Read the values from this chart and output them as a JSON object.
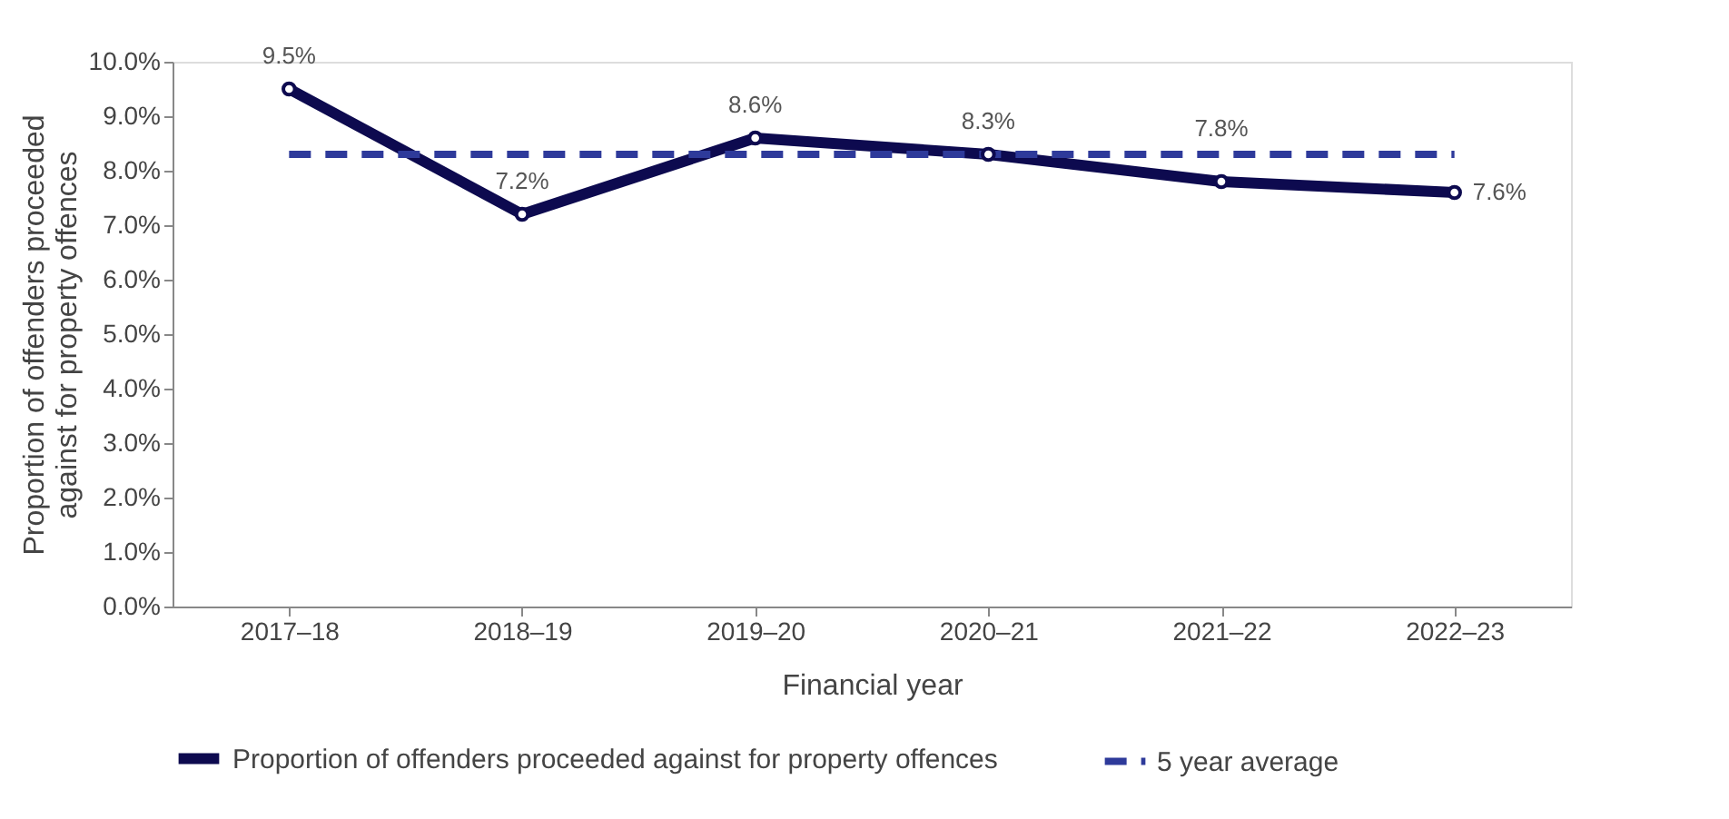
{
  "chart_data": {
    "type": "line",
    "xlabel": "Financial year",
    "ylabel": "Proportion of offenders proceeded against for property offences",
    "categories": [
      "2017–18",
      "2018–19",
      "2019–20",
      "2020–21",
      "2021–22",
      "2022–23"
    ],
    "series": [
      {
        "name": "Proportion of offenders proceeded against for property offences",
        "color": "#0d0a4f",
        "values": [
          9.5,
          7.2,
          8.6,
          8.3,
          7.8,
          7.6
        ],
        "value_labels": [
          "9.5%",
          "7.2%",
          "8.6%",
          "8.3%",
          "7.8%",
          "7.6%"
        ],
        "marker": "circle",
        "line_style": "solid"
      },
      {
        "name": "5 year average",
        "color": "#2e3a9a",
        "values": [
          8.3,
          8.3,
          8.3,
          8.3,
          8.3,
          8.3
        ],
        "marker": "none",
        "line_style": "dashed"
      }
    ],
    "ylim": [
      0,
      10
    ],
    "yticks": [
      {
        "value": 0,
        "label": "0.0%"
      },
      {
        "value": 1,
        "label": "1.0%"
      },
      {
        "value": 2,
        "label": "2.0%"
      },
      {
        "value": 3,
        "label": "3.0%"
      },
      {
        "value": 4,
        "label": "4.0%"
      },
      {
        "value": 5,
        "label": "5.0%"
      },
      {
        "value": 6,
        "label": "6.0%"
      },
      {
        "value": 7,
        "label": "7.0%"
      },
      {
        "value": 8,
        "label": "8.0%"
      },
      {
        "value": 9,
        "label": "9.0%"
      },
      {
        "value": 10,
        "label": "10.0%"
      }
    ],
    "grid": false,
    "legend": "bottom"
  }
}
